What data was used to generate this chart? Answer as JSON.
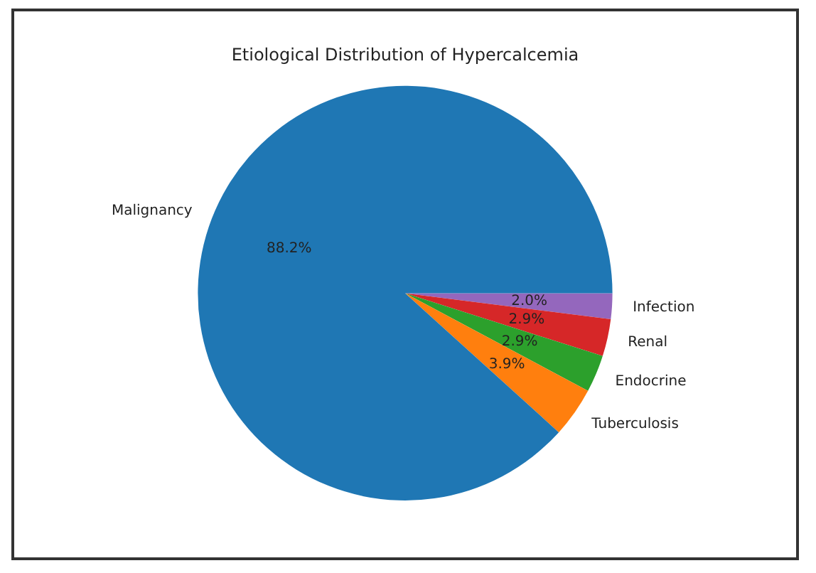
{
  "chart_data": {
    "type": "pie",
    "title": "Etiological Distribution of Hypercalcemia",
    "categories": [
      "Malignancy",
      "Tuberculosis",
      "Endocrine",
      "Renal",
      "Infection"
    ],
    "values": [
      88.2,
      3.9,
      2.9,
      2.9,
      2.0
    ],
    "colors": [
      "#1f77b4",
      "#ff7f0e",
      "#2ca02c",
      "#d62728",
      "#9467bd"
    ],
    "value_labels": [
      "88.2%",
      "3.9%",
      "2.9%",
      "2.9%",
      "2.0%"
    ],
    "legend": false
  }
}
